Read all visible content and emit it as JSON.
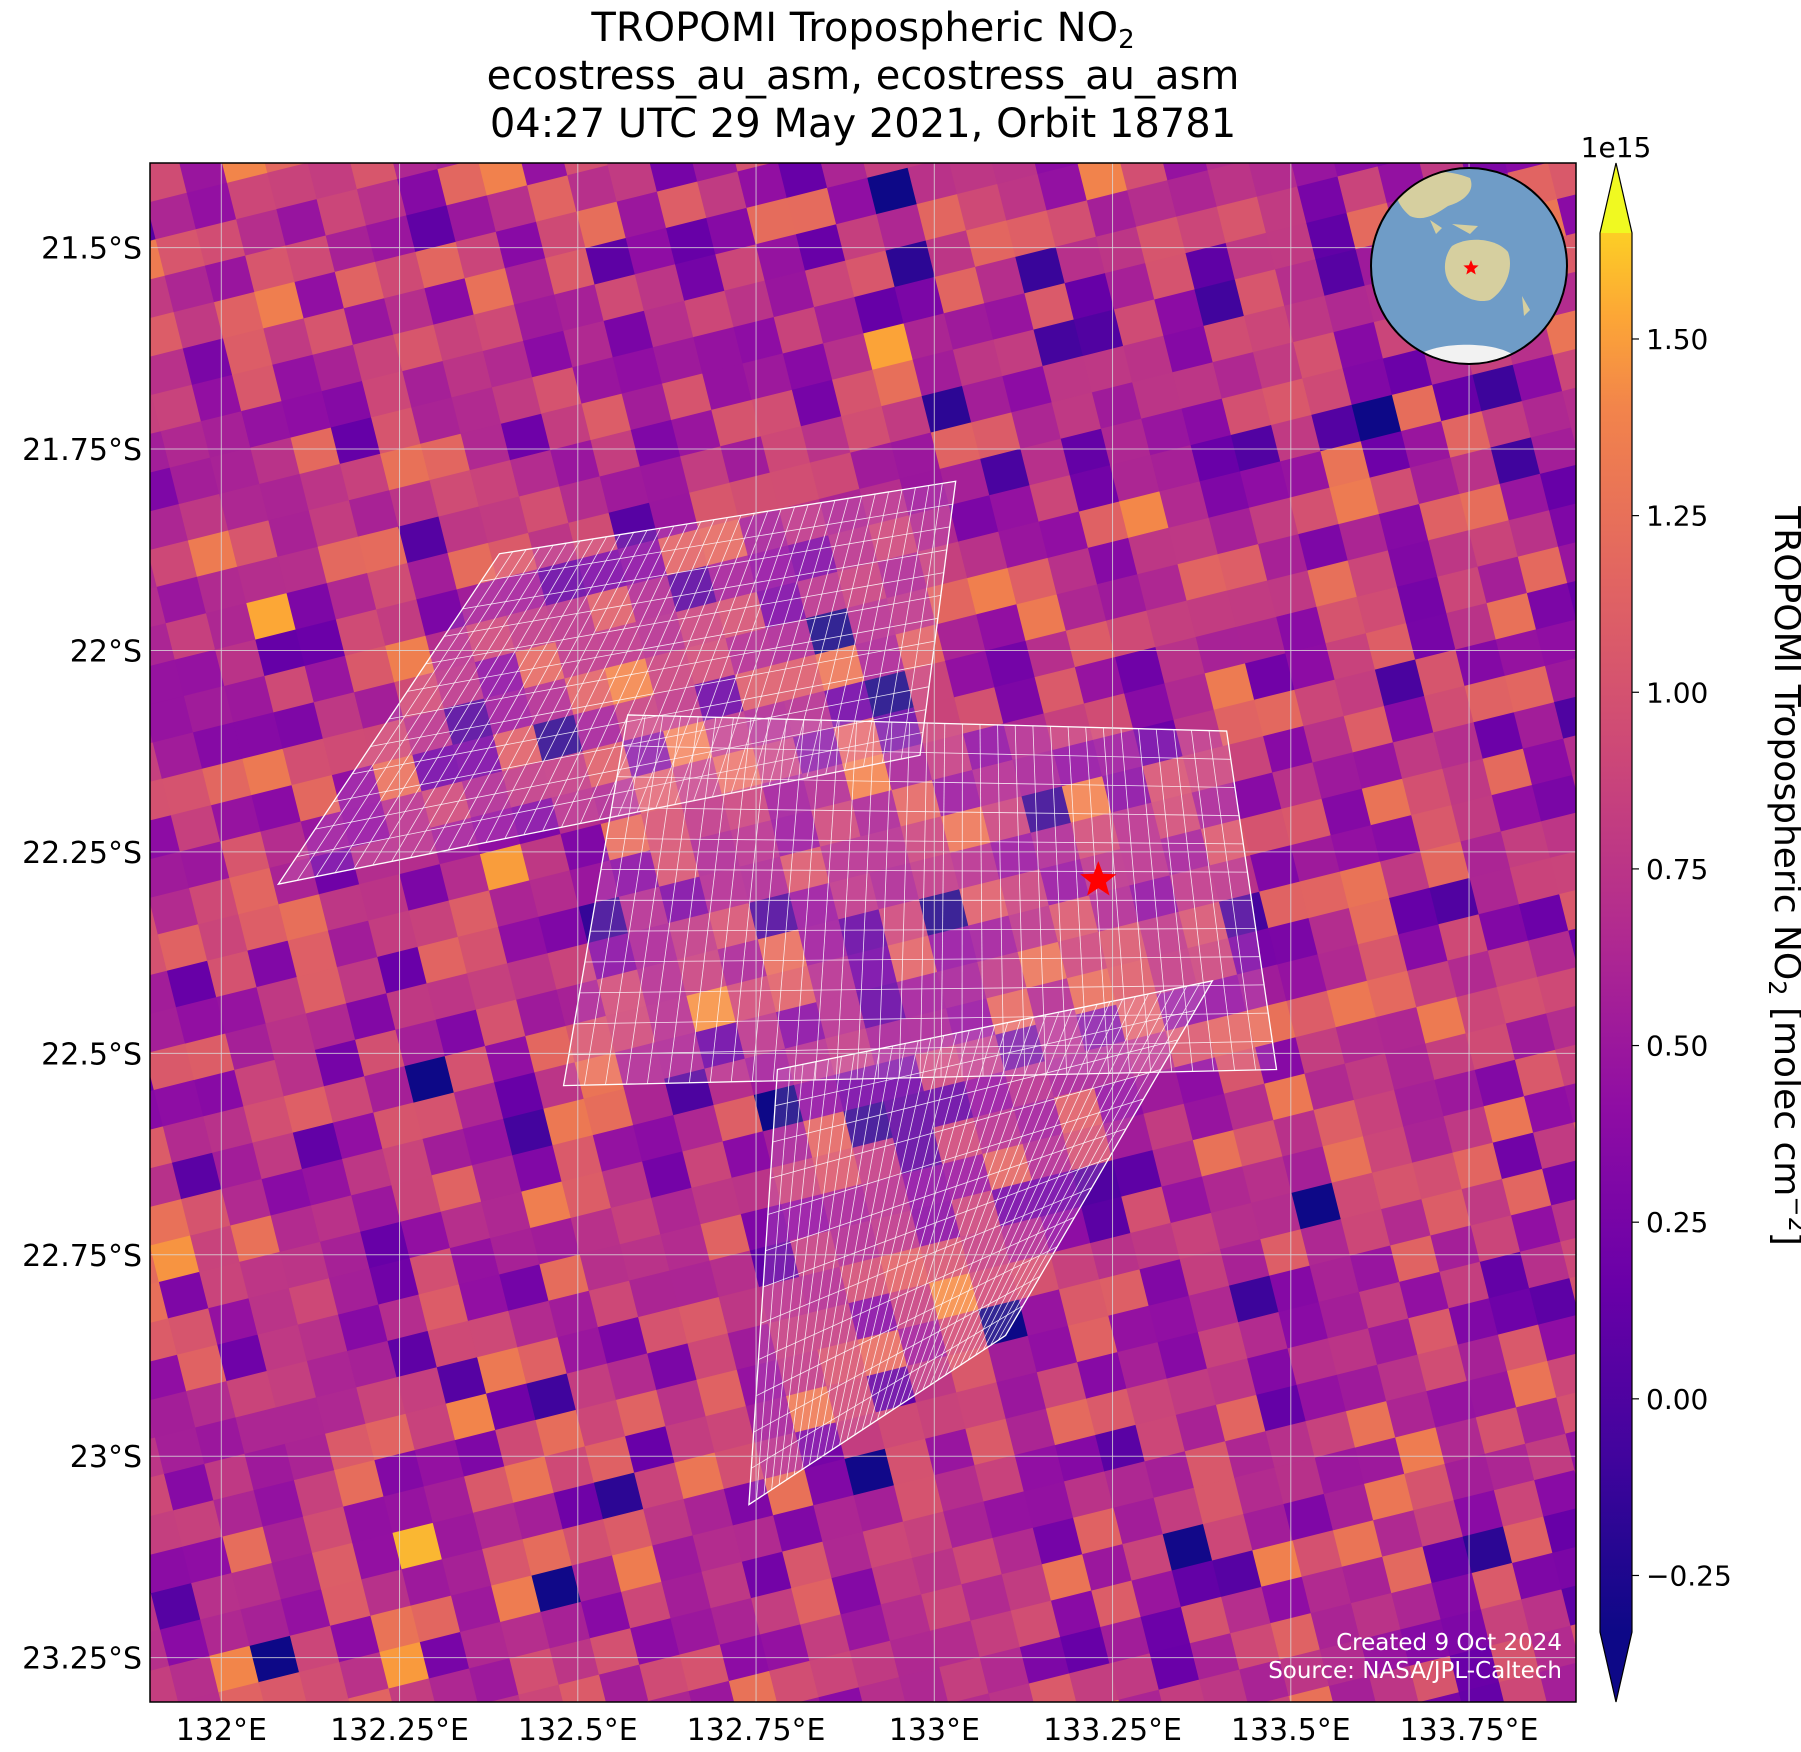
{
  "figure": {
    "title_line1_text": "TROPOMI Tropospheric NO",
    "title_line1_sub": "2",
    "title_line2": "ecostress_au_asm, ecostress_au_asm",
    "title_line3": "04:27 UTC 29 May 2021, Orbit 18781"
  },
  "map": {
    "extent": {
      "lon_min": 131.9,
      "lon_max": 133.9,
      "lat_min": -23.305,
      "lat_max": -21.395
    },
    "grid_lines": true,
    "lon_ticks": [
      {
        "value": 132.0,
        "label": "132°E"
      },
      {
        "value": 132.25,
        "label": "132.25°E"
      },
      {
        "value": 132.5,
        "label": "132.5°E"
      },
      {
        "value": 132.75,
        "label": "132.75°E"
      },
      {
        "value": 133.0,
        "label": "133°E"
      },
      {
        "value": 133.25,
        "label": "133.25°E"
      },
      {
        "value": 133.5,
        "label": "133.5°E"
      },
      {
        "value": 133.75,
        "label": "133.75°E"
      }
    ],
    "lat_ticks": [
      {
        "value": -21.5,
        "label": "21.5°S"
      },
      {
        "value": -21.75,
        "label": "21.75°S"
      },
      {
        "value": -22.0,
        "label": "22°S"
      },
      {
        "value": -22.25,
        "label": "22.25°S"
      },
      {
        "value": -22.5,
        "label": "22.5°S"
      },
      {
        "value": -22.75,
        "label": "22.75°S"
      },
      {
        "value": -23.0,
        "label": "23°S"
      },
      {
        "value": -23.25,
        "label": "23.25°S"
      }
    ],
    "target_marker": {
      "lon": 133.23,
      "lat": -22.285,
      "symbol": "star",
      "color": "#ff0000"
    },
    "pixel_colormap": "plasma",
    "pixel_tilt_degrees": -14,
    "overlay_grid_color": "#ffffff",
    "overlay_regions": [
      {
        "name": "north-scene",
        "corners": [
          [
            132.39,
            -21.88
          ],
          [
            133.03,
            -21.79
          ],
          [
            132.98,
            -22.13
          ],
          [
            132.08,
            -22.29
          ]
        ]
      },
      {
        "name": "middle-scene",
        "corners": [
          [
            132.57,
            -22.08
          ],
          [
            133.41,
            -22.1
          ],
          [
            133.48,
            -22.52
          ],
          [
            132.48,
            -22.54
          ]
        ]
      },
      {
        "name": "south-scene",
        "corners": [
          [
            132.78,
            -22.52
          ],
          [
            133.39,
            -22.41
          ],
          [
            133.1,
            -22.85
          ],
          [
            132.74,
            -23.06
          ]
        ]
      }
    ]
  },
  "inset_globe": {
    "center_lon": 133,
    "center_lat": -22,
    "marker": {
      "lon": 133.0,
      "lat": -22.3,
      "symbol": "star",
      "color": "#ff0000"
    },
    "ocean_color": "#6f9cc7",
    "land_color": "#d6cf9f"
  },
  "colorbar": {
    "label_text": "TROPOMI Tropospheric NO",
    "label_sub": "2",
    "label_units": " [molec cm",
    "label_sup": "−2",
    "label_close": "]",
    "scale_label": "1e15",
    "vmin": -0.33,
    "vmax": 1.65,
    "extend": "both",
    "ticks": [
      {
        "value": -0.25,
        "label": "−0.25"
      },
      {
        "value": 0.0,
        "label": "0.00"
      },
      {
        "value": 0.25,
        "label": "0.25"
      },
      {
        "value": 0.5,
        "label": "0.50"
      },
      {
        "value": 0.75,
        "label": "0.75"
      },
      {
        "value": 1.0,
        "label": "1.00"
      },
      {
        "value": 1.25,
        "label": "1.25"
      },
      {
        "value": 1.5,
        "label": "1.50"
      }
    ]
  },
  "credits": {
    "created": "Created 9 Oct 2024",
    "source": "Source: NASA/JPL-Caltech"
  }
}
